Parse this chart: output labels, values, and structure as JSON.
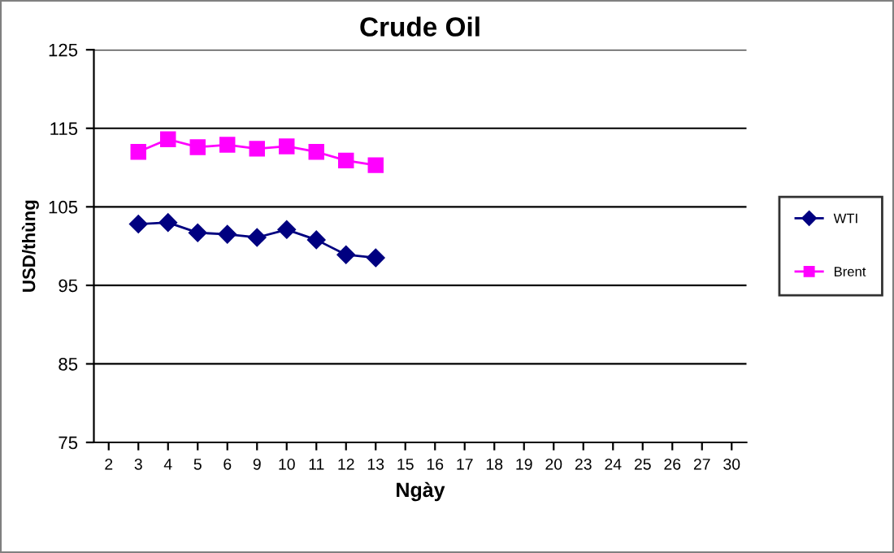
{
  "chart_data": {
    "type": "line",
    "title": "Crude Oil",
    "xlabel": "Ngày",
    "ylabel": "USD/thùng",
    "categories": [
      "2",
      "3",
      "4",
      "5",
      "6",
      "9",
      "10",
      "11",
      "12",
      "13",
      "15",
      "16",
      "17",
      "18",
      "19",
      "20",
      "23",
      "24",
      "25",
      "26",
      "27",
      "30"
    ],
    "series": [
      {
        "name": "WTI",
        "color": "#000080",
        "marker": "diamond",
        "values": [
          null,
          102.8,
          103.0,
          101.7,
          101.5,
          101.1,
          102.1,
          100.8,
          98.9,
          98.5,
          null,
          null,
          null,
          null,
          null,
          null,
          null,
          null,
          null,
          null,
          null,
          null
        ]
      },
      {
        "name": "Brent",
        "color": "#ff00ff",
        "marker": "square",
        "values": [
          null,
          112.0,
          113.6,
          112.6,
          112.9,
          112.4,
          112.7,
          112.0,
          110.9,
          110.3,
          null,
          null,
          null,
          null,
          null,
          null,
          null,
          null,
          null,
          null,
          null,
          null
        ]
      }
    ],
    "ylim": [
      75,
      125
    ],
    "yticks": [
      75,
      85,
      95,
      105,
      115,
      125
    ],
    "grid": "y",
    "legend": "right",
    "line_style": "solid"
  }
}
